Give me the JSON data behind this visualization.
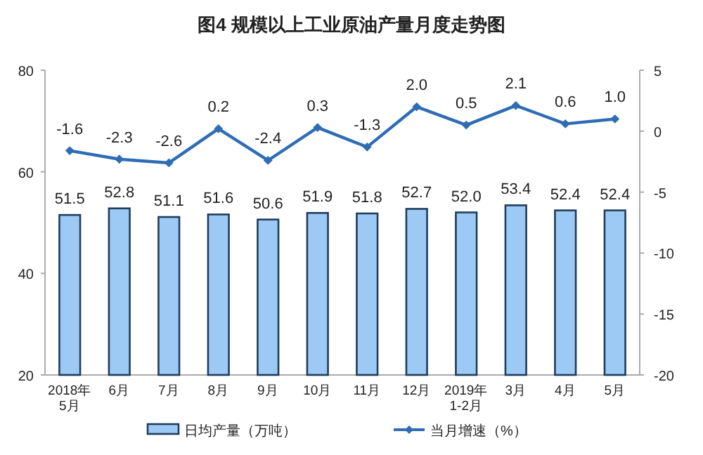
{
  "chart_data": {
    "type": "bar",
    "title": "图4  规模以上工业原油产量月度走势图",
    "categories": [
      "2018年\n5月",
      "6月",
      "7月",
      "8月",
      "9月",
      "10月",
      "11月",
      "12月",
      "2019年\n1-2月",
      "3月",
      "4月",
      "5月"
    ],
    "series": [
      {
        "name": "日均产量（万吨）",
        "color": "#9dc9f5",
        "values": [
          51.5,
          52.8,
          51.1,
          51.6,
          50.6,
          51.9,
          51.8,
          52.7,
          52.0,
          53.4,
          52.4,
          52.4
        ],
        "value_labels": [
          "51.5",
          "52.8",
          "51.1",
          "51.6",
          "50.6",
          "51.9",
          "51.8",
          "52.7",
          "52.0",
          "53.4",
          "52.4",
          "52.4"
        ]
      },
      {
        "name": "当月增速（%）",
        "type": "line",
        "axis": "y2",
        "color": "#2e6db4",
        "marker": "diamond",
        "values": [
          -1.6,
          -2.3,
          -2.6,
          0.2,
          -2.4,
          0.3,
          -1.3,
          2.0,
          0.5,
          2.1,
          0.6,
          1.0
        ],
        "value_labels": [
          "-1.6",
          "-2.3",
          "-2.6",
          "0.2",
          "-2.4",
          "0.3",
          "-1.3",
          "2.0",
          "0.5",
          "2.1",
          "0.6",
          "1.0"
        ]
      }
    ],
    "ylim": [
      20,
      80
    ],
    "yticks": [
      20,
      40,
      60,
      80
    ],
    "y2lim": [
      -20,
      5
    ],
    "y2ticks": [
      -20,
      -15,
      -10,
      -5,
      0,
      5
    ],
    "legend": "bottom"
  }
}
